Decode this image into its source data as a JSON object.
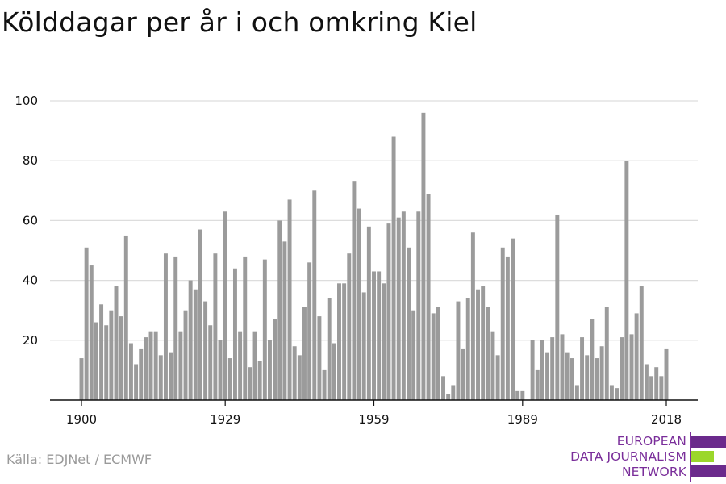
{
  "header": {
    "title": "Kölddagar per år i och omkring Kiel"
  },
  "footer": {
    "source": "Källa: EDJNet / ECMWF"
  },
  "logo": {
    "lines": [
      "EUROPEAN",
      "DATA JOURNALISM",
      "NETWORK"
    ],
    "colors": {
      "purple": "#6b2a8c",
      "green": "#9bd72b",
      "text": "#7a2e9a"
    }
  },
  "chart_data": {
    "type": "bar",
    "title": "Kölddagar per år i och omkring Kiel",
    "xlabel": "",
    "ylabel": "",
    "x_start": 1900,
    "x_end": 2020,
    "x_ticks": [
      1900,
      1929,
      1959,
      1989,
      2018
    ],
    "y_ticks": [
      20,
      40,
      60,
      80,
      100
    ],
    "ylim": [
      0,
      100
    ],
    "grid": true,
    "bar_color": "#9b9b9b",
    "values": [
      14,
      51,
      45,
      26,
      32,
      25,
      30,
      38,
      28,
      55,
      19,
      12,
      17,
      21,
      23,
      23,
      15,
      49,
      16,
      48,
      23,
      30,
      40,
      37,
      57,
      33,
      25,
      49,
      20,
      63,
      14,
      44,
      23,
      48,
      11,
      23,
      13,
      47,
      20,
      27,
      60,
      53,
      67,
      18,
      15,
      31,
      46,
      70,
      28,
      10,
      34,
      19,
      39,
      39,
      49,
      73,
      64,
      36,
      58,
      43,
      43,
      39,
      59,
      88,
      61,
      63,
      51,
      30,
      63,
      96,
      69,
      29,
      31,
      8,
      2,
      5,
      33,
      17,
      34,
      56,
      37,
      38,
      31,
      23,
      15,
      51,
      48,
      54,
      3,
      3,
      0,
      20,
      10,
      20,
      16,
      21,
      62,
      22,
      16,
      14,
      5,
      21,
      15,
      27,
      14,
      18,
      31,
      5,
      4,
      21,
      80,
      22,
      29,
      38,
      12,
      8,
      11,
      8,
      17
    ]
  }
}
